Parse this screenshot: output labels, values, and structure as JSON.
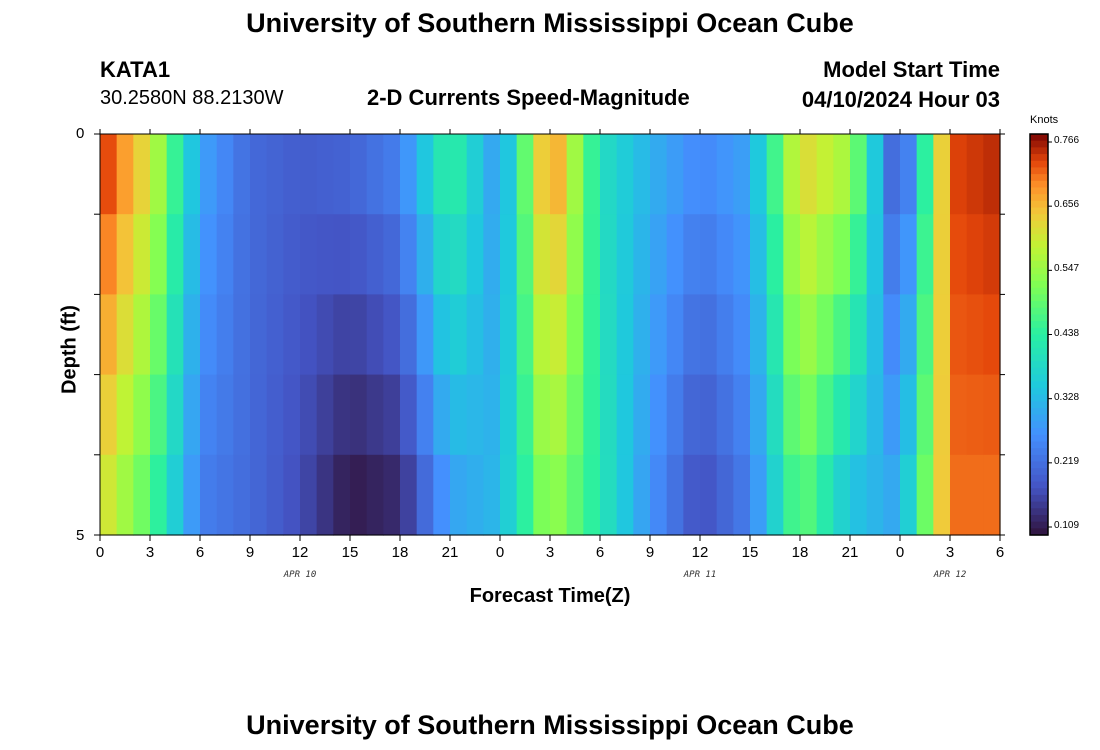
{
  "header": {
    "title": "University of Southern Mississippi Ocean Cube",
    "station": "KATA1",
    "coords": "30.2580N  88.2130W",
    "subtitle": "2-D Currents Speed-Magnitude",
    "model_label": "Model Start Time",
    "model_time": "04/10/2024 Hour 03"
  },
  "footer": {
    "title": "University of Southern Mississippi Ocean Cube"
  },
  "chart_data": {
    "type": "heatmap",
    "title": "2-D Currents Speed-Magnitude",
    "xlabel": "Forecast Time(Z)",
    "ylabel": "Depth (ft)",
    "x_tick_labels": [
      "0",
      "3",
      "6",
      "9",
      "12",
      "15",
      "18",
      "21",
      "0",
      "3",
      "6",
      "9",
      "12",
      "15",
      "18",
      "21",
      "0",
      "3",
      "6"
    ],
    "x_range_hours": [
      0,
      54
    ],
    "date_labels": [
      {
        "text": "APR 10",
        "hour": 12
      },
      {
        "text": "APR 11",
        "hour": 36
      },
      {
        "text": "APR 12",
        "hour": 51
      }
    ],
    "y_tick_labels": [
      "0",
      "5"
    ],
    "y_range": [
      0,
      5
    ],
    "depth_levels": [
      0,
      1,
      2,
      3,
      4,
      5
    ],
    "colorbar": {
      "unit": "Knots",
      "ticks": [
        "0.766",
        "0.656",
        "0.547",
        "0.438",
        "0.328",
        "0.219",
        "0.109"
      ],
      "range": [
        0.109,
        0.766
      ]
    },
    "time_hours": [
      0,
      3,
      6,
      9,
      12,
      15,
      18,
      21,
      24,
      27,
      30,
      33,
      36,
      39,
      42,
      45,
      48,
      51,
      54
    ],
    "speed_profile_knots": [
      0.74,
      0.6,
      0.3,
      0.22,
      0.2,
      0.21,
      0.25,
      0.45,
      0.28,
      0.7,
      0.4,
      0.32,
      0.26,
      0.3,
      0.62,
      0.55,
      0.16,
      0.72,
      0.74
    ],
    "deep_speed_profile_knots": [
      0.62,
      0.48,
      0.25,
      0.22,
      0.18,
      0.12,
      0.14,
      0.3,
      0.33,
      0.55,
      0.42,
      0.28,
      0.18,
      0.25,
      0.5,
      0.35,
      0.3,
      0.7,
      0.7
    ]
  }
}
